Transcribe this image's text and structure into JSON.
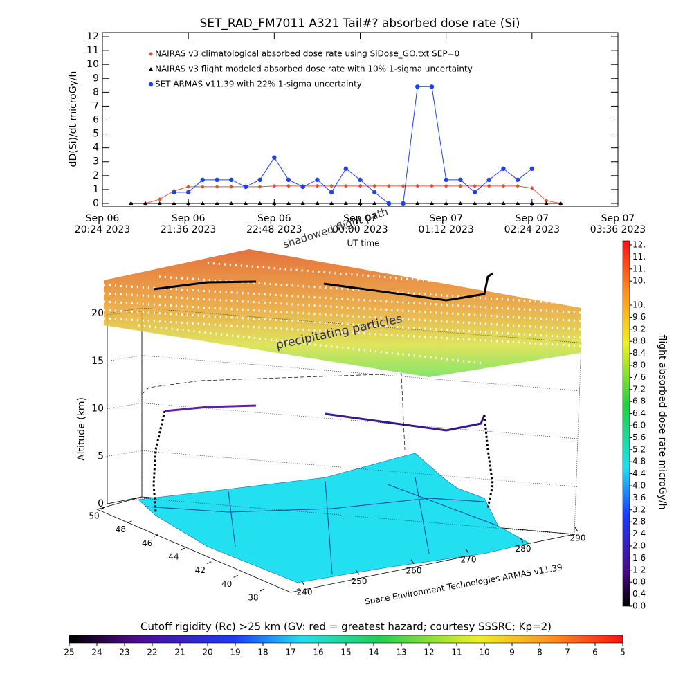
{
  "chart_data": [
    {
      "type": "line",
      "title": "SET_RAD_FM7011  A321 Tail#? absorbed dose rate (Si)",
      "ylabel": "dD(Si)/dt microGy/h",
      "xlabel": "UT time",
      "ylim": [
        -0.2,
        12.3
      ],
      "yticks": [
        0,
        1,
        2,
        3,
        4,
        5,
        6,
        7,
        8,
        9,
        10,
        11,
        12
      ],
      "xlim": [
        "2023-09-06T20:24",
        "2023-09-07T03:36"
      ],
      "xticks": [
        {
          "value": "2023-09-06T20:24",
          "label": [
            "Sep 06",
            "20:24 2023"
          ]
        },
        {
          "value": "2023-09-06T21:36",
          "label": [
            "Sep 06",
            "21:36 2023"
          ]
        },
        {
          "value": "2023-09-06T22:48",
          "label": [
            "Sep 06",
            "22:48 2023"
          ]
        },
        {
          "value": "2023-09-07T00:00",
          "label": [
            "Sep 07",
            "00:00 2023"
          ]
        },
        {
          "value": "2023-09-07T01:12",
          "label": [
            "Sep 07",
            "01:12 2023"
          ]
        },
        {
          "value": "2023-09-07T02:24",
          "label": [
            "Sep 07",
            "02:24 2023"
          ]
        },
        {
          "value": "2023-09-07T03:36",
          "label": [
            "Sep 07",
            "03:36 2023"
          ]
        }
      ],
      "x": [
        "2023-09-06T20:48",
        "2023-09-06T21:00",
        "2023-09-06T21:12",
        "2023-09-06T21:24",
        "2023-09-06T21:36",
        "2023-09-06T21:48",
        "2023-09-06T22:00",
        "2023-09-06T22:12",
        "2023-09-06T22:24",
        "2023-09-06T22:36",
        "2023-09-06T22:48",
        "2023-09-06T23:00",
        "2023-09-06T23:12",
        "2023-09-06T23:24",
        "2023-09-06T23:36",
        "2023-09-06T23:48",
        "2023-09-07T00:00",
        "2023-09-07T00:12",
        "2023-09-07T00:24",
        "2023-09-07T00:36",
        "2023-09-07T00:48",
        "2023-09-07T01:00",
        "2023-09-07T01:12",
        "2023-09-07T01:24",
        "2023-09-07T01:36",
        "2023-09-07T01:48",
        "2023-09-07T02:00",
        "2023-09-07T02:12",
        "2023-09-07T02:24",
        "2023-09-07T02:36",
        "2023-09-07T02:48"
      ],
      "series": [
        {
          "name": "NAIRAS v3 climatological absorbed dose rate using SiDose_GO.txt SEP=0",
          "color": "#e0533a",
          "marker": "diamond",
          "values": [
            0,
            0,
            0.3,
            0.9,
            1.2,
            1.2,
            1.2,
            1.2,
            1.2,
            1.2,
            1.25,
            1.25,
            1.25,
            1.25,
            1.25,
            1.25,
            1.25,
            1.25,
            1.25,
            1.25,
            1.25,
            1.25,
            1.25,
            1.25,
            1.25,
            1.25,
            1.25,
            1.25,
            1.1,
            0.2,
            0
          ]
        },
        {
          "name": "NAIRAS v3 flight modeled absorbed dose rate with 10% 1-sigma uncertainty",
          "color": "#000000",
          "marker": "triangle",
          "values": [
            0,
            0,
            0,
            0,
            0,
            0,
            0,
            0,
            0,
            0,
            0,
            0,
            0,
            0,
            0,
            0,
            0,
            0,
            0,
            0,
            0,
            0,
            0,
            0,
            0,
            0,
            0,
            0,
            0,
            0,
            0
          ]
        },
        {
          "name": "SET ARMAS v11.39 with 22% 1-sigma uncertainty",
          "color": "#1f3ff0",
          "marker": "circle",
          "values": [
            null,
            null,
            null,
            0.8,
            0.8,
            1.7,
            1.7,
            1.7,
            1.2,
            1.7,
            3.3,
            1.7,
            1.2,
            1.7,
            0.8,
            2.5,
            1.7,
            0.8,
            0,
            0,
            8.4,
            8.4,
            1.7,
            1.7,
            0.8,
            1.7,
            2.5,
            1.7,
            2.5,
            null,
            null
          ]
        }
      ]
    },
    {
      "type": "surface3d",
      "zlabel": "Altitude (km)",
      "zlim": [
        0,
        20
      ],
      "zticks": [
        0,
        5,
        10,
        15,
        20
      ],
      "xlim": [
        50,
        38
      ],
      "xticks": [
        50,
        48,
        46,
        44,
        42,
        40,
        38
      ],
      "ylim": [
        240,
        290
      ],
      "yticks": [
        240,
        250,
        260,
        270,
        280,
        290
      ],
      "annotations": [
        "precipitating particles",
        "shadowed flight path"
      ],
      "credit": "Space Environment Technologies ARMAS v11.39",
      "colorbar": {
        "label": "flight absorbed dose rate microGy/h",
        "lim": [
          0,
          12
        ],
        "ticks": [
          {
            "value": 0,
            "label": "0.0"
          },
          {
            "value": 0.4,
            "label": "0.4"
          },
          {
            "value": 0.8,
            "label": "0.8"
          },
          {
            "value": 1.2,
            "label": "1.2"
          },
          {
            "value": 1.6,
            "label": "1.6"
          },
          {
            "value": 2,
            "label": "2.0"
          },
          {
            "value": 2.4,
            "label": "2.4"
          },
          {
            "value": 2.8,
            "label": "2.8"
          },
          {
            "value": 3.2,
            "label": "3.2"
          },
          {
            "value": 3.6,
            "label": "3.6"
          },
          {
            "value": 4,
            "label": "4.0"
          },
          {
            "value": 4.4,
            "label": "4.4"
          },
          {
            "value": 4.8,
            "label": "4.8"
          },
          {
            "value": 5.2,
            "label": "5.2"
          },
          {
            "value": 5.6,
            "label": "5.6"
          },
          {
            "value": 6,
            "label": "6.0"
          },
          {
            "value": 6.4,
            "label": "6.4"
          },
          {
            "value": 6.8,
            "label": "6.8"
          },
          {
            "value": 7.2,
            "label": "7.2"
          },
          {
            "value": 7.6,
            "label": "7.6"
          },
          {
            "value": 8,
            "label": "8.0"
          },
          {
            "value": 8.4,
            "label": "8.4"
          },
          {
            "value": 8.8,
            "label": "8.8"
          },
          {
            "value": 9.2,
            "label": "9.2"
          },
          {
            "value": 9.6,
            "label": "9.6"
          },
          {
            "value": 10,
            "label": "10."
          },
          {
            "value": 10.8,
            "label": "10."
          },
          {
            "value": 11.2,
            "label": "11."
          },
          {
            "value": 11.6,
            "label": "11."
          },
          {
            "value": 12,
            "label": "12."
          }
        ]
      },
      "colorbar2": {
        "label": "Cutoff rigidity (Rc) >25 km (GV: red = greatest hazard; courtesy SSSRC; Kp=2)",
        "lim": [
          25,
          5
        ],
        "ticks": [
          25,
          24,
          23,
          22,
          21,
          20,
          19,
          18,
          17,
          16,
          15,
          14,
          13,
          12,
          11,
          10,
          9,
          8,
          7,
          6,
          5
        ]
      }
    }
  ]
}
